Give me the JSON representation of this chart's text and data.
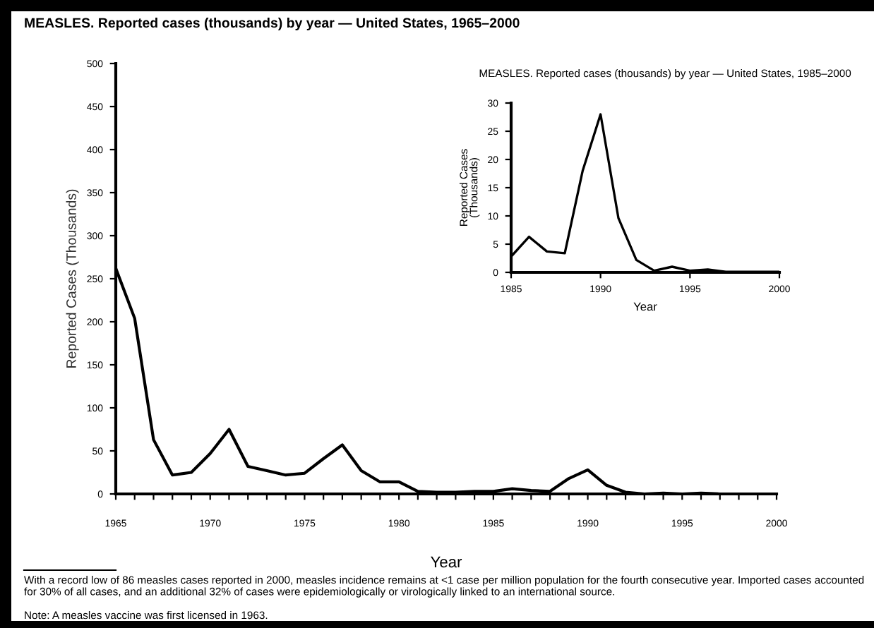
{
  "chart_data": [
    {
      "type": "line",
      "title": "MEASLES. Reported cases (thousands) by year — United States, 1965–2000",
      "xlabel": "Year",
      "ylabel": "Reported Cases (Thousands)",
      "x": [
        1965,
        1966,
        1967,
        1968,
        1969,
        1970,
        1971,
        1972,
        1973,
        1974,
        1975,
        1976,
        1977,
        1978,
        1979,
        1980,
        1981,
        1982,
        1983,
        1984,
        1985,
        1986,
        1987,
        1988,
        1989,
        1990,
        1991,
        1992,
        1993,
        1994,
        1995,
        1996,
        1997,
        1998,
        1999,
        2000
      ],
      "series": [
        {
          "color": "#000000",
          "values": [
            262,
            204,
            63,
            22,
            25,
            47,
            75,
            32,
            27,
            22,
            24,
            41,
            57,
            27,
            14,
            14,
            3,
            2,
            2,
            3,
            3,
            6,
            4,
            3,
            18,
            28,
            10,
            2,
            0,
            1,
            0,
            1,
            0,
            0,
            0,
            0
          ]
        }
      ],
      "xlim": [
        1965,
        2000
      ],
      "ylim": [
        0,
        500
      ],
      "xticks": [
        1965,
        {
          "value": 1966,
          "label": null
        },
        {
          "value": 1967,
          "label": null
        },
        {
          "value": 1968,
          "label": null
        },
        {
          "value": 1969,
          "label": null
        },
        1970,
        {
          "value": 1971,
          "label": null
        },
        {
          "value": 1972,
          "label": null
        },
        {
          "value": 1973,
          "label": null
        },
        {
          "value": 1974,
          "label": null
        },
        1975,
        {
          "value": 1976,
          "label": null
        },
        {
          "value": 1977,
          "label": null
        },
        {
          "value": 1978,
          "label": null
        },
        {
          "value": 1979,
          "label": null
        },
        1980,
        {
          "value": 1981,
          "label": null
        },
        {
          "value": 1982,
          "label": null
        },
        {
          "value": 1983,
          "label": null
        },
        {
          "value": 1984,
          "label": null
        },
        1985,
        {
          "value": 1986,
          "label": null
        },
        {
          "value": 1987,
          "label": null
        },
        {
          "value": 1988,
          "label": null
        },
        {
          "value": 1989,
          "label": null
        },
        1990,
        {
          "value": 1991,
          "label": null
        },
        {
          "value": 1992,
          "label": null
        },
        {
          "value": 1993,
          "label": null
        },
        {
          "value": 1994,
          "label": null
        },
        1995,
        {
          "value": 1996,
          "label": null
        },
        {
          "value": 1997,
          "label": null
        },
        {
          "value": 1998,
          "label": null
        },
        {
          "value": 1999,
          "label": null
        },
        2000
      ],
      "yticks": [
        0,
        50,
        100,
        150,
        200,
        250,
        300,
        350,
        400,
        450,
        500
      ],
      "grid": false,
      "legend": false,
      "marker": "none",
      "line_style": "solid",
      "annotations": [
        "With a record low of 86 measles cases reported in 2000, measles incidence remains at <1 case per million population for the fourth consecutive year. Imported cases accounted for 30% of all cases, and an additional 32% of cases were epidemiologically or virologically linked to an international source.",
        "Note: A measles vaccine was first licensed in 1963."
      ]
    },
    {
      "type": "line",
      "title": "MEASLES. Reported cases (thousands) by year — United States, 1985–2000",
      "xlabel": "Year",
      "ylabel": "Reported Cases\n(Thousands)",
      "x": [
        1985,
        1986,
        1987,
        1988,
        1989,
        1990,
        1991,
        1992,
        1993,
        1994,
        1995,
        1996,
        1997,
        1998,
        1999,
        2000
      ],
      "series": [
        {
          "color": "#000000",
          "values": [
            2.8,
            6.3,
            3.7,
            3.4,
            18,
            28,
            9.6,
            2.2,
            0.3,
            1,
            0.3,
            0.5,
            0.1,
            0.1,
            0.1,
            0.1
          ]
        }
      ],
      "xlim": [
        1985,
        2000
      ],
      "ylim": [
        0,
        30
      ],
      "xticks": [
        1985,
        1990,
        1995,
        2000
      ],
      "yticks": [
        0,
        5,
        10,
        15,
        20,
        25,
        30
      ],
      "grid": false,
      "legend": false,
      "marker": "none",
      "line_style": "solid"
    }
  ]
}
